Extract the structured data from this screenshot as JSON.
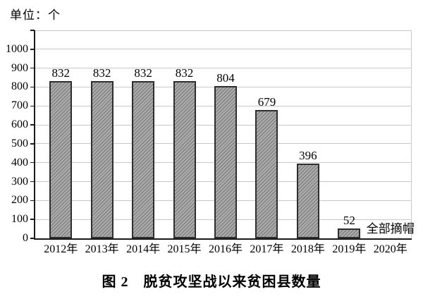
{
  "unit_label": "单位：个",
  "figure_title": "图 2　脱贫攻坚战以来贫困县数量",
  "chart_data": {
    "type": "bar",
    "title": "图 2　脱贫攻坚战以来贫困县数量",
    "unit": "单位：个",
    "categories": [
      "2012年",
      "2013年",
      "2014年",
      "2015年",
      "2016年",
      "2017年",
      "2018年",
      "2019年",
      "2020年"
    ],
    "values": [
      832,
      832,
      832,
      832,
      804,
      679,
      396,
      52,
      null
    ],
    "bar_labels": [
      "832",
      "832",
      "832",
      "832",
      "804",
      "679",
      "396",
      "52",
      ""
    ],
    "annotation": {
      "text": "全部摘帽",
      "category": "2020年"
    },
    "xlabel": "",
    "ylabel": "",
    "ylim": [
      0,
      1100
    ],
    "ytick_step": 100,
    "ytick_labels": [
      "0",
      "100",
      "200",
      "300",
      "400",
      "500",
      "600",
      "700",
      "800",
      "900",
      "1000"
    ],
    "grid": true,
    "legend": "none",
    "colors": {
      "bar_fill": "#ababab",
      "bar_hatch": "#767676",
      "bar_border": "#2e2e2e",
      "gridline": "#c9c9c9",
      "axis": "#1a1a1a",
      "text": "#000000"
    }
  }
}
